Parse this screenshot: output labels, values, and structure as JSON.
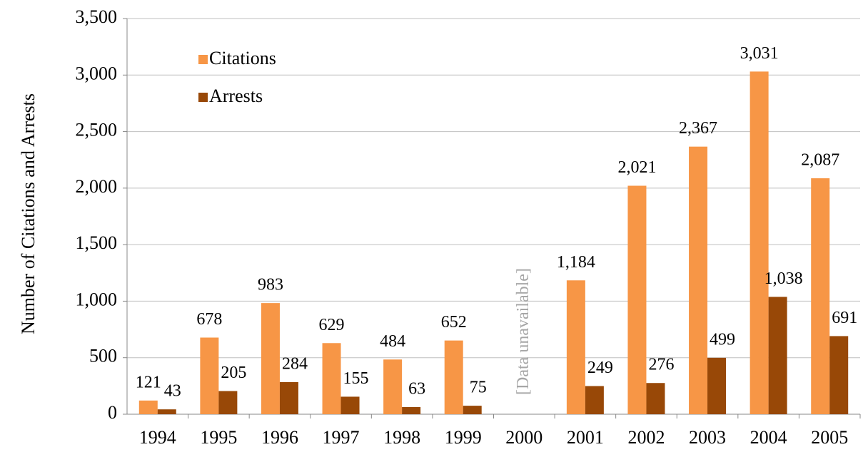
{
  "chart_data": {
    "type": "bar",
    "y_axis_label": "Number of Citations and Arrests",
    "annotation": "[Data unavailable]",
    "categories": [
      "1994",
      "1995",
      "1996",
      "1997",
      "1998",
      "1999",
      "2000",
      "2001",
      "2002",
      "2003",
      "2004",
      "2005"
    ],
    "series": [
      {
        "name": "Citations",
        "color": "#f79646",
        "values": [
          121,
          678,
          983,
          629,
          484,
          652,
          null,
          1184,
          2021,
          2367,
          3031,
          2087
        ],
        "value_labels": [
          "121",
          "678",
          "983",
          "629",
          "484",
          "652",
          null,
          "1,184",
          "2,021",
          "2,367",
          "3,031",
          "2,087"
        ]
      },
      {
        "name": "Arrests",
        "color": "#984807",
        "values": [
          43,
          205,
          284,
          155,
          63,
          75,
          null,
          249,
          276,
          499,
          1038,
          691
        ],
        "value_labels": [
          "43",
          "205",
          "284",
          "155",
          "63",
          "75",
          null,
          "249",
          "276",
          "499",
          "1,038",
          "691"
        ]
      }
    ],
    "ylim": [
      0,
      3500
    ],
    "yticks": [
      0,
      500,
      {
        "value": 1000,
        "label": "1,000"
      },
      {
        "value": 1500,
        "label": "1,500"
      },
      {
        "value": 2000,
        "label": "2,000"
      },
      {
        "value": 2500,
        "label": "2,500"
      },
      {
        "value": 3000,
        "label": "3,000"
      },
      {
        "value": 3500,
        "label": "3,500"
      }
    ],
    "grid": true
  }
}
